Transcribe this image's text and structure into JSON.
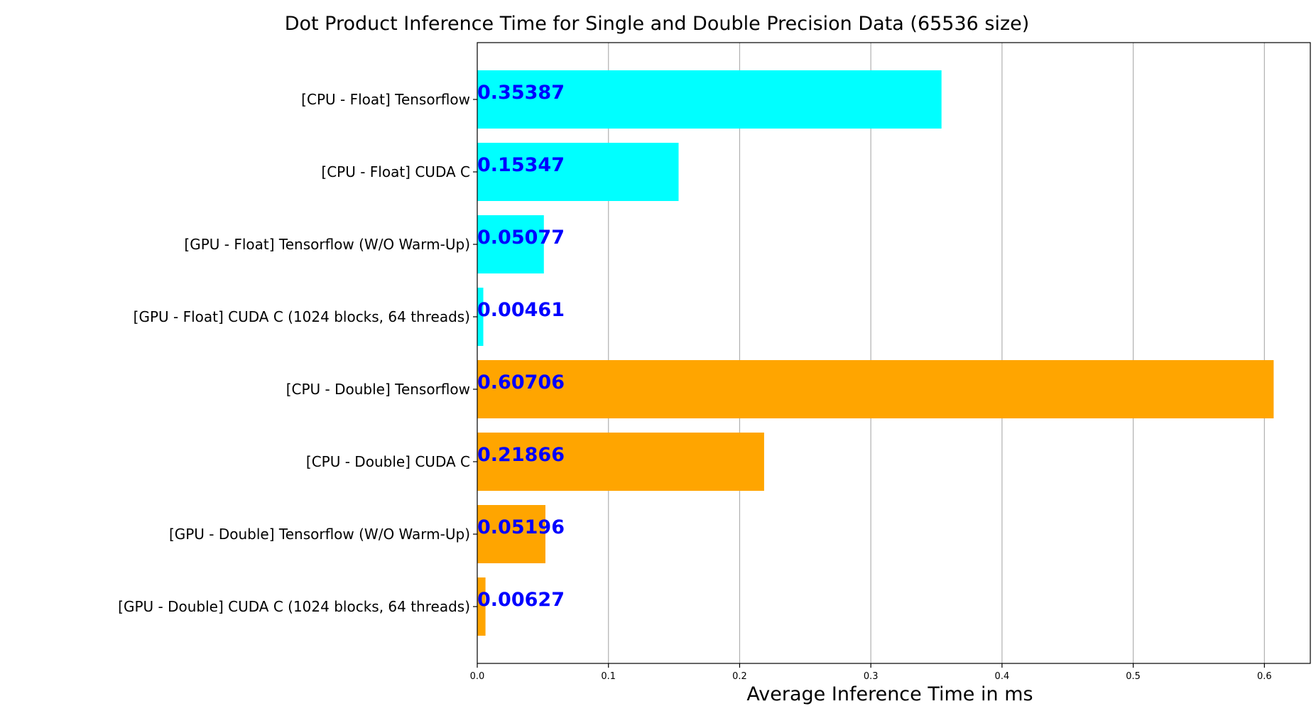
{
  "chart_data": {
    "type": "bar",
    "orientation": "horizontal",
    "title": "Dot Product Inference Time for Single and Double Precision Data (65536 size)",
    "xlabel": "Average Inference Time in ms",
    "ylabel": "",
    "xlim": [
      0,
      0.635
    ],
    "xticks": [
      0.0,
      0.1,
      0.2,
      0.3,
      0.4,
      0.5,
      0.6
    ],
    "xtick_labels": [
      "0.0",
      "0.1",
      "0.2",
      "0.3",
      "0.4",
      "0.5",
      "0.6"
    ],
    "grid": "x-major",
    "categories": [
      "[CPU - Float] Tensorflow",
      "[CPU - Float] CUDA C",
      "[GPU - Float] Tensorflow (W/O Warm-Up)",
      "[GPU - Float] CUDA C (1024 blocks, 64 threads)",
      "[CPU - Double] Tensorflow",
      "[CPU - Double] CUDA C",
      "[GPU - Double] Tensorflow (W/O Warm-Up)",
      "[GPU - Double] CUDA C (1024 blocks, 64 threads)"
    ],
    "values": [
      0.35387,
      0.15347,
      0.05077,
      0.00461,
      0.60706,
      0.21866,
      0.05196,
      0.00627
    ],
    "value_labels": [
      "0.35387",
      "0.15347",
      "0.05077",
      "0.00461",
      "0.60706",
      "0.21866",
      "0.05196",
      "0.00627"
    ],
    "bar_colors": [
      "#00ffff",
      "#00ffff",
      "#00ffff",
      "#00ffff",
      "#ffa500",
      "#ffa500",
      "#ffa500",
      "#ffa500"
    ],
    "value_label_color": "#0000ff",
    "grid_color": "#b0b0b0"
  }
}
